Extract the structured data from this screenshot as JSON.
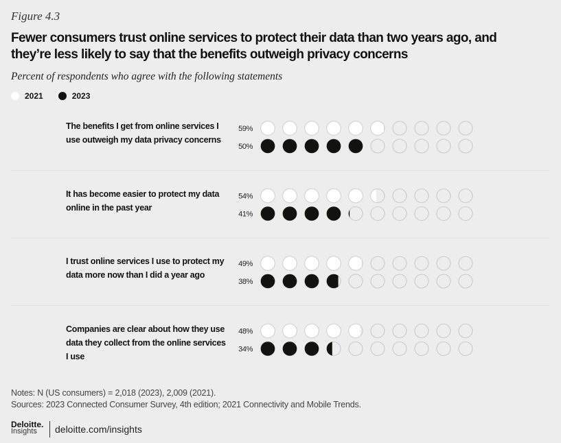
{
  "figure_label": "Figure 4.3",
  "title": "Fewer consumers trust online services to protect their data than two years ago, and they’re less likely to say that the benefits outweigh privacy concerns",
  "subtitle": "Percent of respondents who agree with the following statements",
  "colors": {
    "c2021": "#ffffff",
    "c2023": "#12120e",
    "empty_stroke": "#cfcfcf",
    "bg": "#ededed"
  },
  "chart_data": {
    "type": "dot-matrix",
    "dots_per_row": 10,
    "percent_per_dot": 10,
    "legend": [
      "2021",
      "2023"
    ],
    "categories": [
      "The benefits I get from online services I use outweigh my data privacy concerns",
      "It has become easier to protect my data online in the past year",
      "I trust online services I use to protect my data more now than I did a year ago",
      "Companies are clear about how they use data they collect from the online services I use"
    ],
    "series": [
      {
        "name": "2021",
        "values": [
          59,
          54,
          49,
          48
        ],
        "labels": [
          "59%",
          "54%",
          "49%",
          "48%"
        ]
      },
      {
        "name": "2023",
        "values": [
          50,
          41,
          38,
          34
        ],
        "labels": [
          "50%",
          "41%",
          "38%",
          "34%"
        ]
      }
    ]
  },
  "notes": "Notes: N (US consumers) = 2,018 (2023), 2,009 (2021).",
  "sources": "Sources: 2023 Connected Consumer Survey, 4th edition; 2021 Connectivity and Mobile Trends.",
  "logo": {
    "brand": "Deloitte.",
    "sub": "Insights"
  },
  "url": "deloitte.com/insights"
}
